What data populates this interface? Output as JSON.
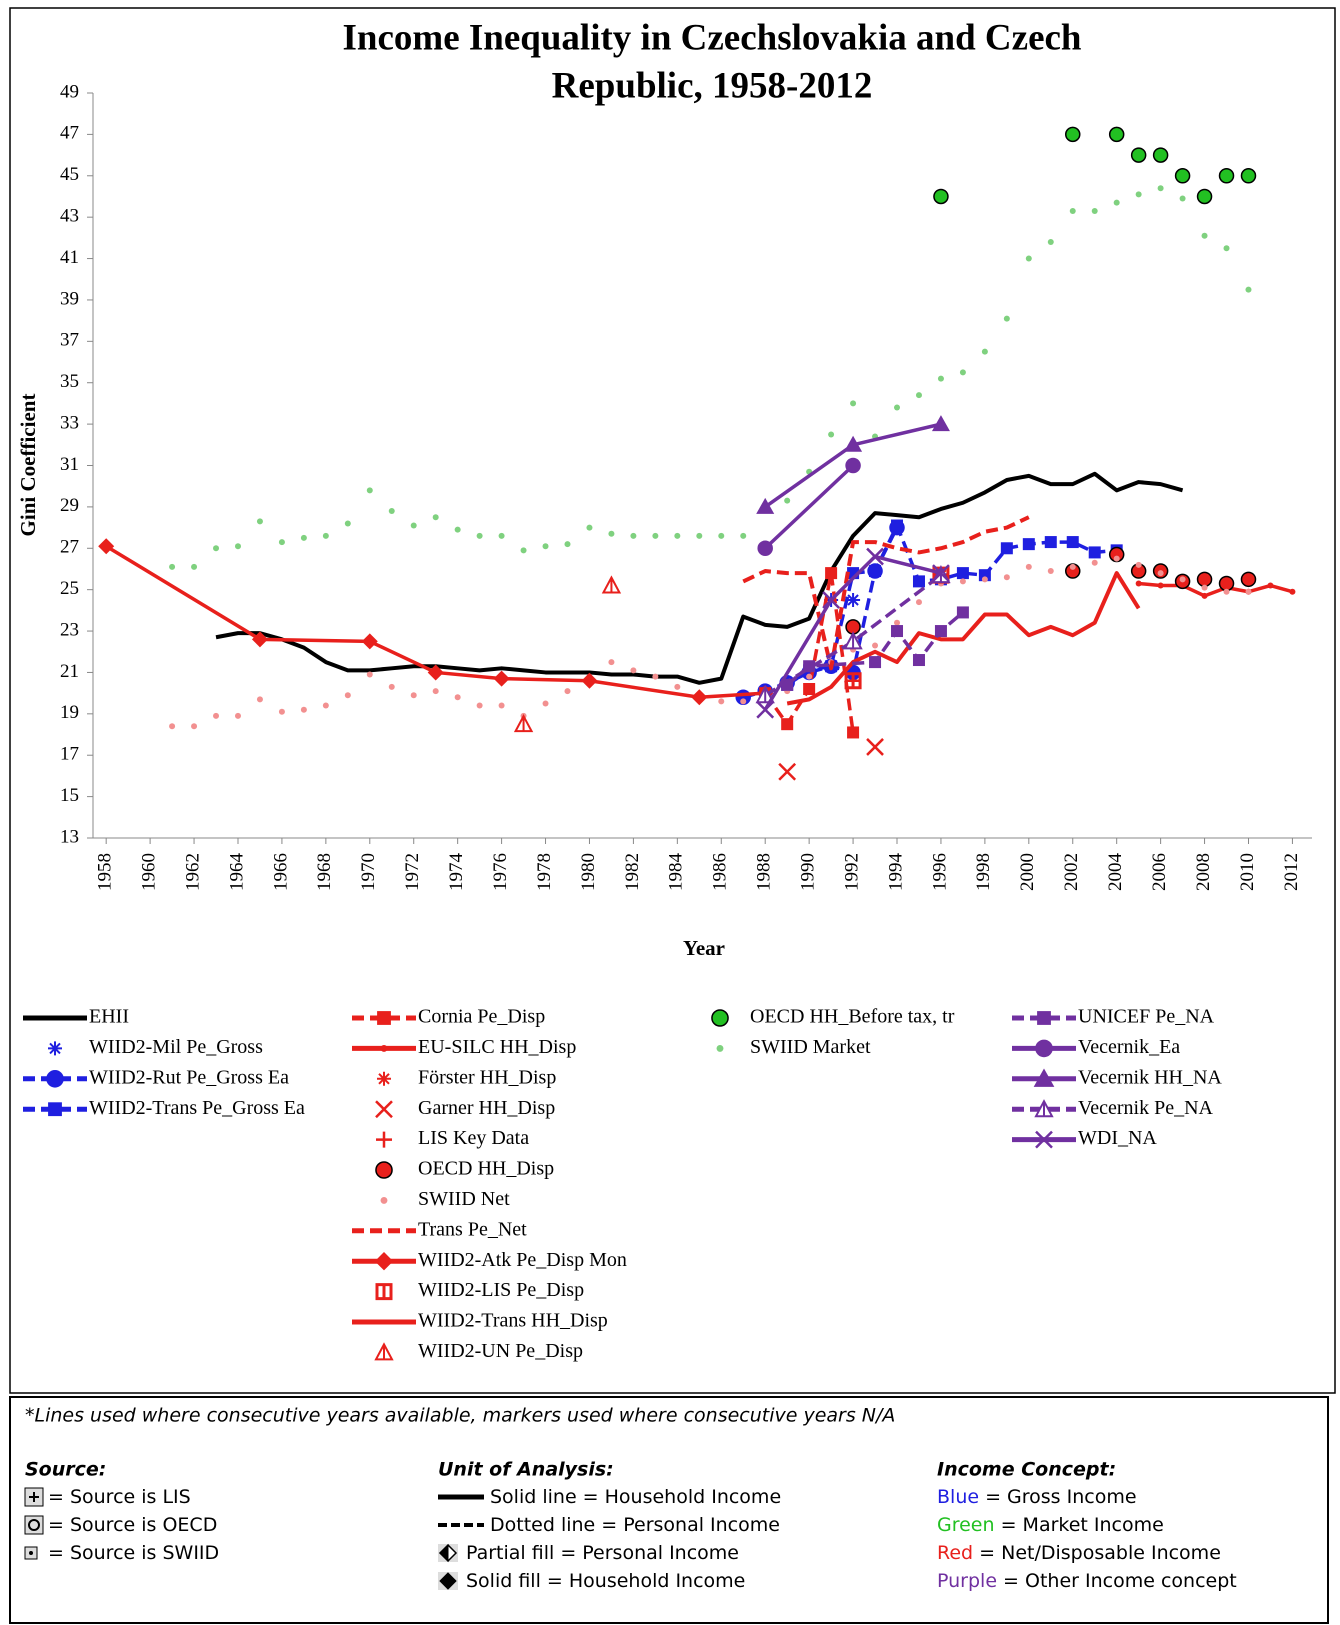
{
  "chart_data": {
    "type": "line",
    "title": [
      "Income Inequality in Czechslovakia and Czech",
      "Republic, 1958-2012"
    ],
    "x_label": "Year",
    "y_label": "Gini Coefficient",
    "xlim": [
      1957.4,
      2012.8
    ],
    "xticks": [
      1958,
      1960,
      1962,
      1964,
      1966,
      1968,
      1970,
      1972,
      1974,
      1976,
      1978,
      1980,
      1982,
      1984,
      1986,
      1988,
      1990,
      1992,
      1994,
      1996,
      1998,
      2000,
      2002,
      2004,
      2006,
      2008,
      2010,
      2012
    ],
    "ylim": [
      13,
      49
    ],
    "yticks": [
      13,
      15,
      17,
      19,
      21,
      23,
      25,
      27,
      29,
      31,
      33,
      35,
      37,
      39,
      41,
      43,
      45,
      47,
      49
    ],
    "series": [
      {
        "name": "EHII",
        "color": "#000000",
        "line": "solid",
        "marker": "none",
        "x": [
          1963,
          1964,
          1965,
          1966,
          1967,
          1968,
          1969,
          1970,
          1971,
          1972,
          1973,
          1974,
          1975,
          1976,
          1977,
          1978,
          1979,
          1980,
          1981,
          1982,
          1983,
          1984,
          1985,
          1986,
          1987,
          1988,
          1989,
          1990,
          1991,
          1992,
          1993,
          1994,
          1995,
          1996,
          1997,
          1998,
          1999,
          2000,
          2001,
          2002,
          2003,
          2004,
          2005,
          2006,
          2007
        ],
        "values": [
          22.7,
          22.9,
          22.9,
          22.6,
          22.2,
          21.5,
          21.1,
          21.1,
          21.2,
          21.3,
          21.3,
          21.2,
          21.1,
          21.2,
          21.1,
          21.0,
          21.0,
          21.0,
          20.9,
          20.9,
          20.8,
          20.8,
          20.5,
          20.7,
          23.7,
          23.3,
          23.2,
          23.6,
          25.9,
          27.6,
          28.7,
          28.6,
          28.5,
          28.9,
          29.2,
          29.7,
          30.3,
          30.5,
          30.1,
          30.1,
          30.6,
          29.8,
          30.2,
          30.1,
          29.8
        ]
      },
      {
        "name": "WIID2-Mil Pe_Gross",
        "color": "#1f1fe0",
        "marker": "star",
        "x": [
          1991,
          1992
        ],
        "values": [
          24.5,
          24.5
        ]
      },
      {
        "name": "WIID2-Rut Pe_Gross Ea",
        "color": "#1f1fe0",
        "line": "dashed",
        "marker": "circle",
        "x": [
          1987,
          1988,
          1989,
          1990,
          1991,
          1992,
          1993,
          1994
        ],
        "values": [
          19.8,
          20.1,
          20.5,
          21.0,
          21.3,
          21.0,
          25.9,
          28.0
        ]
      },
      {
        "name": "WIID2-Trans Pe_Gross Ea",
        "color": "#1f1fe0",
        "line": "dashed",
        "marker": "square",
        "x": [
          1989,
          1990,
          1991,
          1992,
          1993,
          1994,
          1995,
          1996,
          1997,
          1998,
          1999,
          2000,
          2001,
          2002,
          2003,
          2004
        ],
        "values": [
          20.4,
          21.1,
          21.3,
          25.8,
          25.9,
          28.1,
          25.4,
          25.5,
          25.8,
          25.7,
          27.0,
          27.2,
          27.3,
          27.3,
          26.8,
          26.9
        ]
      },
      {
        "name": "Cornia Pe_Disp",
        "color": "#e8201c",
        "line": "dashed",
        "marker": "square",
        "x": [
          1988,
          1989,
          1990,
          1991,
          1992
        ],
        "values": [
          20.0,
          18.5,
          20.2,
          25.8,
          18.1
        ]
      },
      {
        "name": "EU-SILC HH_Disp",
        "color": "#e8201c",
        "line": "solid",
        "marker": "dot",
        "x": [
          2005,
          2006,
          2007,
          2008,
          2009,
          2010,
          2011,
          2012
        ],
        "values": [
          25.3,
          25.2,
          25.2,
          24.7,
          25.1,
          24.9,
          25.2,
          24.9
        ]
      },
      {
        "name": "Förster HH_Disp",
        "color": "#e8201c",
        "marker": "star",
        "x": [
          1996
        ],
        "values": [
          25.7
        ]
      },
      {
        "name": "Garner HH_Disp",
        "color": "#e8201c",
        "marker": "x",
        "x": [
          1989,
          1993
        ],
        "values": [
          16.2,
          17.4
        ]
      },
      {
        "name": "LIS Key Data",
        "color": "#e8201c",
        "marker": "plus",
        "x": [
          1992,
          1996
        ],
        "values": [
          20.6,
          25.7
        ]
      },
      {
        "name": "OECD HH_Disp",
        "color": "#e8201c",
        "edgecolor": "#000000",
        "marker": "circle",
        "x": [
          1992,
          2002,
          2004,
          2005,
          2006,
          2007,
          2008,
          2009,
          2010
        ],
        "values": [
          23.2,
          25.9,
          26.7,
          25.9,
          25.9,
          25.4,
          25.5,
          25.3,
          25.5
        ]
      },
      {
        "name": "SWIID Net",
        "color": "#f29090",
        "marker": "dot",
        "x": [
          1961,
          1962,
          1963,
          1964,
          1965,
          1966,
          1967,
          1968,
          1969,
          1970,
          1971,
          1972,
          1973,
          1974,
          1975,
          1976,
          1977,
          1978,
          1979,
          1980,
          1981,
          1982,
          1983,
          1984,
          1985,
          1986,
          1987,
          1988,
          1989,
          1990,
          1991,
          1992,
          1993,
          1994,
          1995,
          1996,
          1997,
          1998,
          1999,
          2000,
          2001,
          2002,
          2003,
          2004,
          2005,
          2006,
          2007,
          2008,
          2009,
          2010
        ],
        "values": [
          18.4,
          18.4,
          18.9,
          18.9,
          19.7,
          19.1,
          19.2,
          19.4,
          19.9,
          20.9,
          20.3,
          19.9,
          20.1,
          19.8,
          19.4,
          19.4,
          18.9,
          19.5,
          20.1,
          20.8,
          21.5,
          21.1,
          20.8,
          20.3,
          19.9,
          19.6,
          19.6,
          19.9,
          20.1,
          20.8,
          21.5,
          22.1,
          22.3,
          23.4,
          24.4,
          25.3,
          25.4,
          25.5,
          25.6,
          26.1,
          25.9,
          26.1,
          26.3,
          26.5,
          26.2,
          25.8,
          25.5,
          25.1,
          24.9,
          24.9
        ]
      },
      {
        "name": "Trans Pe_Net",
        "color": "#e8201c",
        "line": "dashed",
        "marker": "none",
        "x": [
          1987,
          1988,
          1989,
          1990,
          1991,
          1992,
          1993,
          1994,
          1995,
          1996,
          1997,
          1998,
          1999,
          2000
        ],
        "values": [
          25.4,
          25.9,
          25.8,
          25.8,
          21.2,
          27.3,
          27.3,
          27.0,
          26.8,
          27.0,
          27.3,
          27.8,
          28.0,
          28.5
        ]
      },
      {
        "name": "WIID2-Atk Pe_Disp Mon",
        "color": "#e8201c",
        "line": "solid",
        "marker": "diamond",
        "x": [
          1958,
          1965,
          1970,
          1973,
          1976,
          1980,
          1985,
          1988
        ],
        "values": [
          27.1,
          22.6,
          22.5,
          21.0,
          20.7,
          20.6,
          19.8,
          20.0
        ]
      },
      {
        "name": "WIID2-LIS Pe_Disp",
        "color": "#e8201c",
        "marker": "halfsquare",
        "x": [
          1992,
          1996
        ],
        "values": [
          20.6,
          25.7
        ]
      },
      {
        "name": "WIID2-Trans HH_Disp",
        "color": "#e8201c",
        "line": "solid",
        "marker": "none",
        "x": [
          1989,
          1990,
          1991,
          1992,
          1993,
          1994,
          1995,
          1996,
          1997,
          1998,
          1999,
          2000,
          2001,
          2002,
          2003,
          2004,
          2005
        ],
        "values": [
          19.5,
          19.7,
          20.3,
          21.5,
          22.0,
          21.5,
          22.9,
          22.6,
          22.6,
          23.8,
          23.8,
          22.8,
          23.2,
          22.8,
          23.4,
          25.8,
          24.1
        ]
      },
      {
        "name": "WIID2-UN Pe_Disp",
        "color": "#e8201c",
        "marker": "halftriangle",
        "x": [
          1977,
          1981
        ],
        "values": [
          18.5,
          25.2
        ]
      },
      {
        "name": "OECD HH_Before tax, tr",
        "color": "#22c022",
        "edgecolor": "#000000",
        "marker": "circle",
        "x": [
          1996,
          2002,
          2004,
          2005,
          2006,
          2007,
          2008,
          2009,
          2010
        ],
        "values": [
          44,
          47,
          47,
          46,
          46,
          45,
          44,
          45,
          45
        ]
      },
      {
        "name": "SWIID Market",
        "color": "#7fd17f",
        "marker": "dot",
        "x": [
          1961,
          1962,
          1963,
          1964,
          1965,
          1966,
          1967,
          1968,
          1969,
          1970,
          1971,
          1972,
          1973,
          1974,
          1975,
          1976,
          1977,
          1978,
          1979,
          1980,
          1981,
          1982,
          1983,
          1984,
          1985,
          1986,
          1987,
          1988,
          1989,
          1990,
          1991,
          1992,
          1993,
          1994,
          1995,
          1996,
          1997,
          1998,
          1999,
          2000,
          2001,
          2002,
          2003,
          2004,
          2005,
          2006,
          2007,
          2008,
          2009,
          2010
        ],
        "values": [
          26.1,
          26.1,
          27.0,
          27.1,
          28.3,
          27.3,
          27.5,
          27.6,
          28.2,
          29.8,
          28.8,
          28.1,
          28.5,
          27.9,
          27.6,
          27.6,
          26.9,
          27.1,
          27.2,
          28.0,
          27.7,
          27.6,
          27.6,
          27.6,
          27.6,
          27.6,
          27.6,
          29.1,
          29.3,
          30.7,
          32.5,
          34.0,
          32.4,
          33.8,
          34.4,
          35.2,
          35.5,
          36.5,
          38.1,
          41.0,
          41.8,
          43.3,
          43.3,
          43.7,
          44.1,
          44.4,
          43.9,
          42.1,
          41.5,
          39.5
        ]
      },
      {
        "name": "UNICEF Pe_NA",
        "color": "#7030a0",
        "line": "dashed",
        "marker": "square",
        "x": [
          1989,
          1990,
          1993,
          1994,
          1995,
          1996,
          1997
        ],
        "values": [
          20.4,
          21.3,
          21.5,
          23.0,
          21.6,
          23.0,
          23.9
        ]
      },
      {
        "name": "Vecernik_Ea",
        "color": "#7030a0",
        "line": "solid",
        "marker": "circle",
        "x": [
          1988,
          1992
        ],
        "values": [
          27.0,
          31.0
        ]
      },
      {
        "name": "Vecernik HH_NA",
        "color": "#7030a0",
        "line": "solid",
        "marker": "triangle",
        "x": [
          1988,
          1992,
          1996
        ],
        "values": [
          29.0,
          32.0,
          33.0
        ]
      },
      {
        "name": "Vecernik Pe_NA",
        "color": "#7030a0",
        "line": "dashed",
        "marker": "halftriangle",
        "x": [
          1988,
          1992,
          1996
        ],
        "values": [
          19.9,
          22.5,
          25.7
        ]
      },
      {
        "name": "WDI_NA",
        "color": "#7030a0",
        "line": "solid",
        "marker": "x",
        "x": [
          1988,
          1991,
          1993,
          1996
        ],
        "values": [
          19.2,
          24.5,
          26.6,
          25.8
        ]
      }
    ]
  },
  "notes": {
    "footnote": "*Lines used where consecutive years available, markers used where consecutive years N/A",
    "columns": [
      {
        "heading": "Source:",
        "items": [
          {
            "text": "= Source is LIS"
          },
          {
            "text": "= Source is OECD"
          },
          {
            "text": "= Source is SWIID"
          }
        ]
      },
      {
        "heading": "Unit of Analysis:",
        "items": [
          {
            "text": "Solid line = Household Income"
          },
          {
            "text": "Dotted line = Personal Income"
          },
          {
            "text": "Partial fill = Personal Income"
          },
          {
            "text": "Solid fill = Household Income"
          }
        ]
      },
      {
        "heading": "Income Concept:",
        "items": [
          {
            "key": "Blue",
            "color": "#1f1fe0",
            "text": " = Gross Income"
          },
          {
            "key": "Green",
            "color": "#22c022",
            "text": " = Market Income"
          },
          {
            "key": "Red",
            "color": "#e8201c",
            "text": " = Net/Disposable Income"
          },
          {
            "key": "Purple",
            "color": "#7030a0",
            "text": " = Other Income concept"
          }
        ]
      }
    ]
  }
}
